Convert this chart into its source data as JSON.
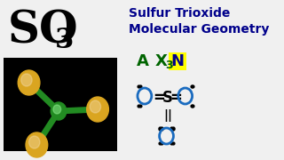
{
  "bg_color": "#f0f0f0",
  "title_text": "Sulfur Trioxide\nMolecular Geometry",
  "formula_S": "SO",
  "formula_sub": "3",
  "ax_label": "A",
  "xn_label": "X",
  "xn_sub": "3",
  "xn_highlight": "N",
  "highlight_color": "#ffff00",
  "dark_blue": "#00008B",
  "green_color": "#228B22",
  "title_color": "#00008B",
  "ax_color": "#006400",
  "s_color": "#1a1a1a",
  "bond_double_char": "=",
  "s_atom": "S",
  "o_atom": "O",
  "sulfur_color": "#228B22",
  "oxygen_color": "#DAA520",
  "mol3d_bg": "#000000"
}
